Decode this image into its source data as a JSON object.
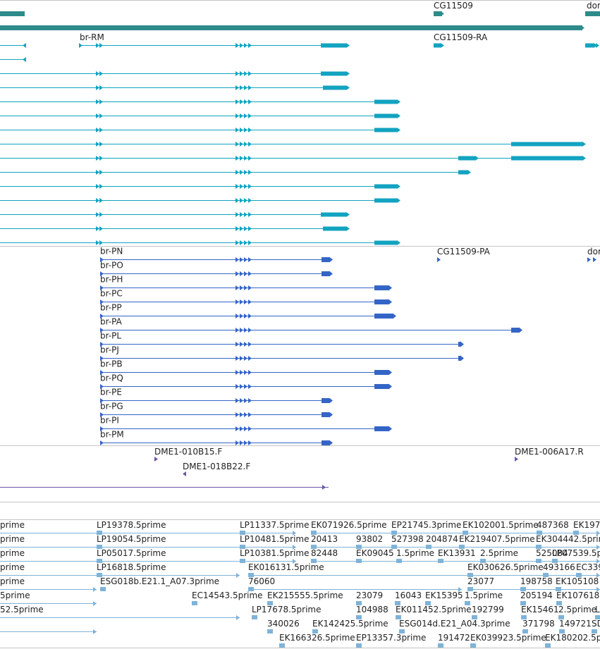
{
  "colors": {
    "gene": "#2e8b8b",
    "transcript": "#12a3c0",
    "protein": "#3465c6",
    "clone": "#6a55a8",
    "est": "#7fb3d8",
    "divider": "#c4c4c4"
  },
  "genes": [
    {
      "label": "CG11509"
    },
    {
      "label": "dor"
    }
  ],
  "transcripts": [
    {
      "label": "br-RM"
    },
    {
      "label": "CG11509-RA"
    }
  ],
  "proteins": [
    {
      "label": "br-PN"
    },
    {
      "label": "br-PO"
    },
    {
      "label": "br-PH"
    },
    {
      "label": "br-PC"
    },
    {
      "label": "br-PP"
    },
    {
      "label": "br-PA"
    },
    {
      "label": "br-PL"
    },
    {
      "label": "br-PJ"
    },
    {
      "label": "br-PB"
    },
    {
      "label": "br-PQ"
    },
    {
      "label": "br-PE"
    },
    {
      "label": "br-PG"
    },
    {
      "label": "br-PI"
    },
    {
      "label": "br-PM"
    }
  ],
  "protein_side_labels": [
    {
      "label": "CG11509-PA"
    },
    {
      "label": "dor"
    }
  ],
  "clones": [
    {
      "label": "DME1-010B15.F"
    },
    {
      "label": "DME1-006A17.R"
    },
    {
      "label": "DME1-018B22.F"
    }
  ],
  "est_labels": [
    "prime",
    "LP19378.5prime",
    "LP11337.5prime",
    "EK071926.5prime",
    "EP21745.3prime",
    "EK102001.5prime",
    "487368",
    "EK197",
    "prime",
    "LP19054.5prime",
    "LP10481.5prime",
    "20413",
    "93802",
    "527398",
    "204874",
    "EK219407.5prime",
    "EK304442.5prime",
    "prime",
    "LP05017.5prime",
    "LP10381.5prime",
    "82448",
    "EK09045",
    "1.5prime",
    "EK13931",
    "2.5prime",
    "525084",
    "LP07539.5p",
    "prime",
    "LP16818.5prime",
    "EK016131.5prime",
    "EK030626.5prime",
    "493166",
    "EC339",
    "prime",
    "ESG018b.E21.1_A07.3prime",
    "76060",
    "23077",
    "198758",
    "EK105108",
    "5prime",
    "EC14543.5prime",
    "EK215555.5prime",
    "23079",
    "16043",
    "EK15395",
    "1.5prime",
    "205194",
    "EK107618",
    "52.5prime",
    "LP17678.5prime",
    "104988",
    "EK011452.5prime",
    "192799",
    "EK15461",
    "2.5prime",
    "L",
    "340026",
    "EK142425.5prime",
    "ESG014d.E21_A04.3prime",
    "371798",
    "149721",
    "SD",
    "EK166326.5prime",
    "EP13357.3prime",
    "191472",
    "EK039923.5prime",
    "EK180202.5p"
  ]
}
